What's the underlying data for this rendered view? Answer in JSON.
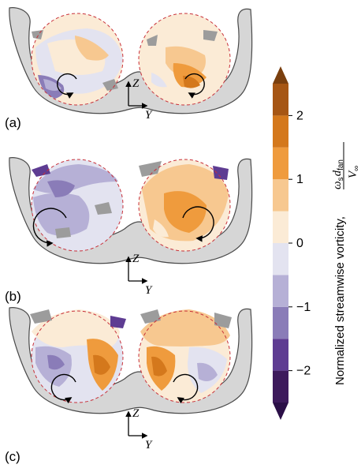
{
  "panels": [
    {
      "label": "(a)",
      "z_axis": "Z",
      "y_axis": "Y",
      "left_rotation": "ccw",
      "right_rotation": "cw"
    },
    {
      "label": "(b)",
      "z_axis": "Z",
      "y_axis": "Y",
      "left_rotation": "ccw",
      "right_rotation": "cw"
    },
    {
      "label": "(c)",
      "z_axis": "Z",
      "y_axis": "Y",
      "left_rotation": "ccw",
      "right_rotation": "cw"
    }
  ],
  "colorbar": {
    "label_text": "Normalized streamwise vorticity, ",
    "frac_numerator_base": "ω",
    "frac_numerator_sub": "s",
    "frac_numerator_var": "d",
    "frac_numerator_var_sub": "fan",
    "frac_denominator_base": "V",
    "frac_denominator_sub": "∞",
    "ticks": [
      "2",
      "1",
      "0",
      "−1",
      "−2"
    ],
    "tick_values": [
      2,
      1,
      0,
      -1,
      -2
    ],
    "range": [
      -2.5,
      2.5
    ],
    "extend": "both",
    "colors": [
      "#3d1a5c",
      "#5e3c92",
      "#8a7cb8",
      "#b6b0d6",
      "#e3e3f0",
      "#fbebd6",
      "#f7c890",
      "#ef9b3d",
      "#d4781c",
      "#a65614"
    ],
    "under_color": "#2b0f47",
    "over_color": "#7a3f0e"
  },
  "colors": {
    "nacelle": "#d6d6d6",
    "outline": "#4a4a4a",
    "fan_circle": "#c8313a",
    "arrow": "#000000"
  }
}
